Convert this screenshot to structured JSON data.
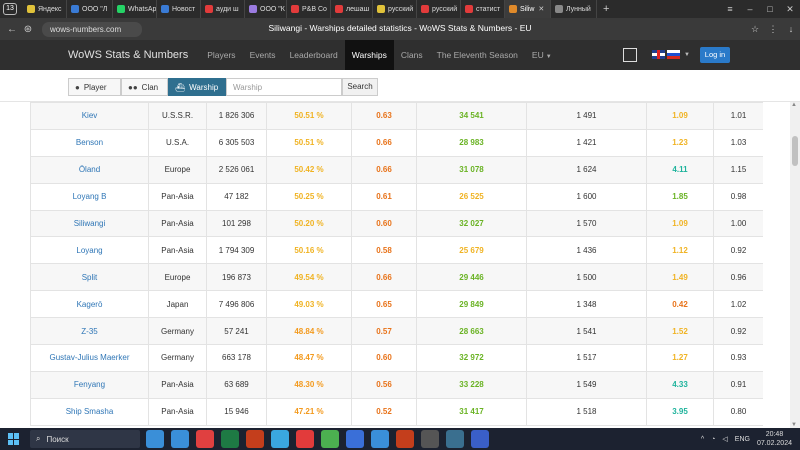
{
  "browser": {
    "tab_count": "13",
    "tabs": [
      {
        "label": "Яндекс",
        "color": "#e0c23a",
        "width": 44
      },
      {
        "label": "ООО \"Л",
        "color": "#3a7bd5",
        "width": 46
      },
      {
        "label": "WhatsAp",
        "color": "#25d366",
        "width": 44
      },
      {
        "label": "Новост",
        "color": "#3a7bd5",
        "width": 44
      },
      {
        "label": "ауди ш",
        "color": "#e23b3b",
        "width": 44
      },
      {
        "label": "ООО \"К",
        "color": "#9b7be0",
        "width": 42
      },
      {
        "label": "P&B Co",
        "color": "#e23b3b",
        "width": 44
      },
      {
        "label": "лешаш",
        "color": "#e23b3b",
        "width": 42
      },
      {
        "label": "русский",
        "color": "#e0c23a",
        "width": 44
      },
      {
        "label": "русский",
        "color": "#e23b3b",
        "width": 44
      },
      {
        "label": "статист",
        "color": "#e23b3b",
        "width": 44
      },
      {
        "label": "Siliw",
        "color": "#e08a2a",
        "width": 46
      },
      {
        "label": "Лунный",
        "color": "#888888",
        "width": 46
      }
    ],
    "active_tab_index": 11,
    "url": "wows-numbers.com",
    "title": "Siliwangi - Warships detailed statistics - WoWS Stats & Numbers - EU"
  },
  "site": {
    "brand": "WoWS Stats & Numbers",
    "nav": [
      {
        "label": "Players"
      },
      {
        "label": "Events"
      },
      {
        "label": "Leaderboard"
      },
      {
        "label": "Warships"
      },
      {
        "label": "Clans"
      },
      {
        "label": "The Eleventh Season"
      },
      {
        "label": "EU"
      }
    ],
    "active_nav": "Warships",
    "login": "Log in"
  },
  "filters": {
    "player": "Player",
    "clan": "Clan",
    "warship": "Warship",
    "input_placeholder": "Warship",
    "search": "Search"
  },
  "colors": {
    "wr_high": "#f0b323",
    "wr_mid": "#f39a1e",
    "wr_low": "#e8731a",
    "kd_orange": "#e8731a",
    "damage_green": "#6ab324",
    "damage_yellow": "#f0b323",
    "pr_yellow": "#f0b323",
    "pr_green": "#6ab324",
    "pr_teal": "#1eb39c",
    "pr_orange": "#e8731a",
    "link": "#2f76b6"
  },
  "table": {
    "rows": [
      {
        "name": "Kiev",
        "nation": "U.S.S.R.",
        "battles": "1 826 306",
        "winrate": "50.51 %",
        "wr_color": "#f0b323",
        "kd": "0.63",
        "damage": "34 541",
        "damage_color": "#6ab324",
        "xp": "1 491",
        "ratio": "1.09",
        "ratio_color": "#f0b323",
        "last": "1.01"
      },
      {
        "name": "Benson",
        "nation": "U.S.A.",
        "battles": "6 305 503",
        "winrate": "50.51 %",
        "wr_color": "#f0b323",
        "kd": "0.66",
        "damage": "28 983",
        "damage_color": "#6ab324",
        "xp": "1 421",
        "ratio": "1.23",
        "ratio_color": "#f0b323",
        "last": "1.03"
      },
      {
        "name": "Öland",
        "nation": "Europe",
        "battles": "2 526 061",
        "winrate": "50.42 %",
        "wr_color": "#f0b323",
        "kd": "0.66",
        "damage": "31 078",
        "damage_color": "#6ab324",
        "xp": "1 624",
        "ratio": "4.11",
        "ratio_color": "#1eb39c",
        "last": "1.15"
      },
      {
        "name": "Loyang B",
        "nation": "Pan-Asia",
        "battles": "47 182",
        "winrate": "50.25 %",
        "wr_color": "#f0b323",
        "kd": "0.61",
        "damage": "26 525",
        "damage_color": "#f0b323",
        "xp": "1 600",
        "ratio": "1.85",
        "ratio_color": "#6ab324",
        "last": "0.98"
      },
      {
        "name": "Siliwangi",
        "nation": "Pan-Asia",
        "battles": "101 298",
        "winrate": "50.20 %",
        "wr_color": "#f0b323",
        "kd": "0.60",
        "damage": "32 027",
        "damage_color": "#6ab324",
        "xp": "1 570",
        "ratio": "1.09",
        "ratio_color": "#f0b323",
        "last": "1.00"
      },
      {
        "name": "Loyang",
        "nation": "Pan-Asia",
        "battles": "1 794 309",
        "winrate": "50.16 %",
        "wr_color": "#f0b323",
        "kd": "0.58",
        "damage": "25 679",
        "damage_color": "#f0b323",
        "xp": "1 436",
        "ratio": "1.12",
        "ratio_color": "#f0b323",
        "last": "0.92"
      },
      {
        "name": "Split",
        "nation": "Europe",
        "battles": "196 873",
        "winrate": "49.54 %",
        "wr_color": "#f0b323",
        "kd": "0.66",
        "damage": "29 446",
        "damage_color": "#6ab324",
        "xp": "1 500",
        "ratio": "1.49",
        "ratio_color": "#f0b323",
        "last": "0.96"
      },
      {
        "name": "Kagerō",
        "nation": "Japan",
        "battles": "7 496 806",
        "winrate": "49.03 %",
        "wr_color": "#f0b323",
        "kd": "0.65",
        "damage": "29 849",
        "damage_color": "#6ab324",
        "xp": "1 348",
        "ratio": "0.42",
        "ratio_color": "#e8731a",
        "last": "1.02"
      },
      {
        "name": "Z-35",
        "nation": "Germany",
        "battles": "57 241",
        "winrate": "48.84 %",
        "wr_color": "#f39a1e",
        "kd": "0.57",
        "damage": "28 663",
        "damage_color": "#6ab324",
        "xp": "1 541",
        "ratio": "1.52",
        "ratio_color": "#f0b323",
        "last": "0.92"
      },
      {
        "name": "Gustav-Julius Maerker",
        "nation": "Germany",
        "battles": "663 178",
        "winrate": "48.47 %",
        "wr_color": "#f39a1e",
        "kd": "0.60",
        "damage": "32 972",
        "damage_color": "#6ab324",
        "xp": "1 517",
        "ratio": "1.27",
        "ratio_color": "#f0b323",
        "last": "0.93"
      },
      {
        "name": "Fenyang",
        "nation": "Pan-Asia",
        "battles": "63 689",
        "winrate": "48.30 %",
        "wr_color": "#f39a1e",
        "kd": "0.56",
        "damage": "33 228",
        "damage_color": "#6ab324",
        "xp": "1 549",
        "ratio": "4.33",
        "ratio_color": "#1eb39c",
        "last": "0.91"
      },
      {
        "name": "Ship Smasha",
        "nation": "Pan-Asia",
        "battles": "15 946",
        "winrate": "47.21 %",
        "wr_color": "#f39a1e",
        "kd": "0.52",
        "damage": "31 417",
        "damage_color": "#6ab324",
        "xp": "1 518",
        "ratio": "3.95",
        "ratio_color": "#1eb39c",
        "last": "0.80"
      }
    ]
  },
  "taskbar": {
    "search": "Поиск",
    "lang": "ENG",
    "time": "20:48",
    "date": "07.02.2024",
    "apps": [
      "#3a8fd8",
      "#3a8fd8",
      "#e04040",
      "#1e7a44",
      "#c43e1c",
      "#3aa7e0",
      "#e23b3b",
      "#4caf50",
      "#3a6fd8",
      "#3a8fd8",
      "#c43e1c",
      "#555555",
      "#3a6f8f",
      "#3a5fc8"
    ]
  }
}
